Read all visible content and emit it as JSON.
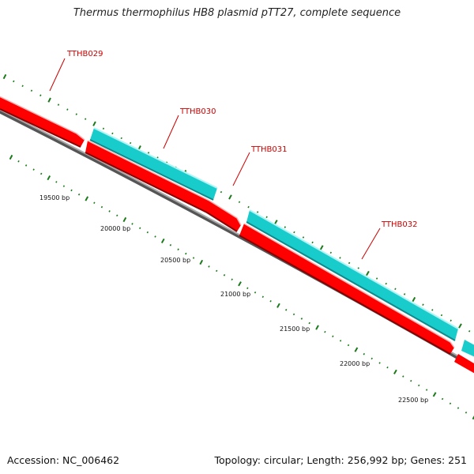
{
  "title": "Thermus thermophilus HB8 plasmid pTT27, complete sequence",
  "footer": {
    "accession": "Accession: NC_006462",
    "summary": "Topology: circular; Length: 256,992 bp; Genes: 251"
  },
  "colors": {
    "forward_gene": "#19cccc",
    "reverse_gene": "#ff0000",
    "backbone": "#8c8c8c",
    "tick": "#1a7a1a",
    "label": "#cc0000"
  },
  "genes": [
    {
      "id": "TTHB029",
      "strand": "reverse"
    },
    {
      "id": "TTHB030",
      "strand": "forward"
    },
    {
      "id": "TTHB031",
      "strand": "reverse"
    },
    {
      "id": "TTHB032",
      "strand": "forward"
    }
  ],
  "position_labels": [
    "19500 bp",
    "20000 bp",
    "20500 bp",
    "21000 bp",
    "21500 bp",
    "22000 bp",
    "22500 bp"
  ]
}
